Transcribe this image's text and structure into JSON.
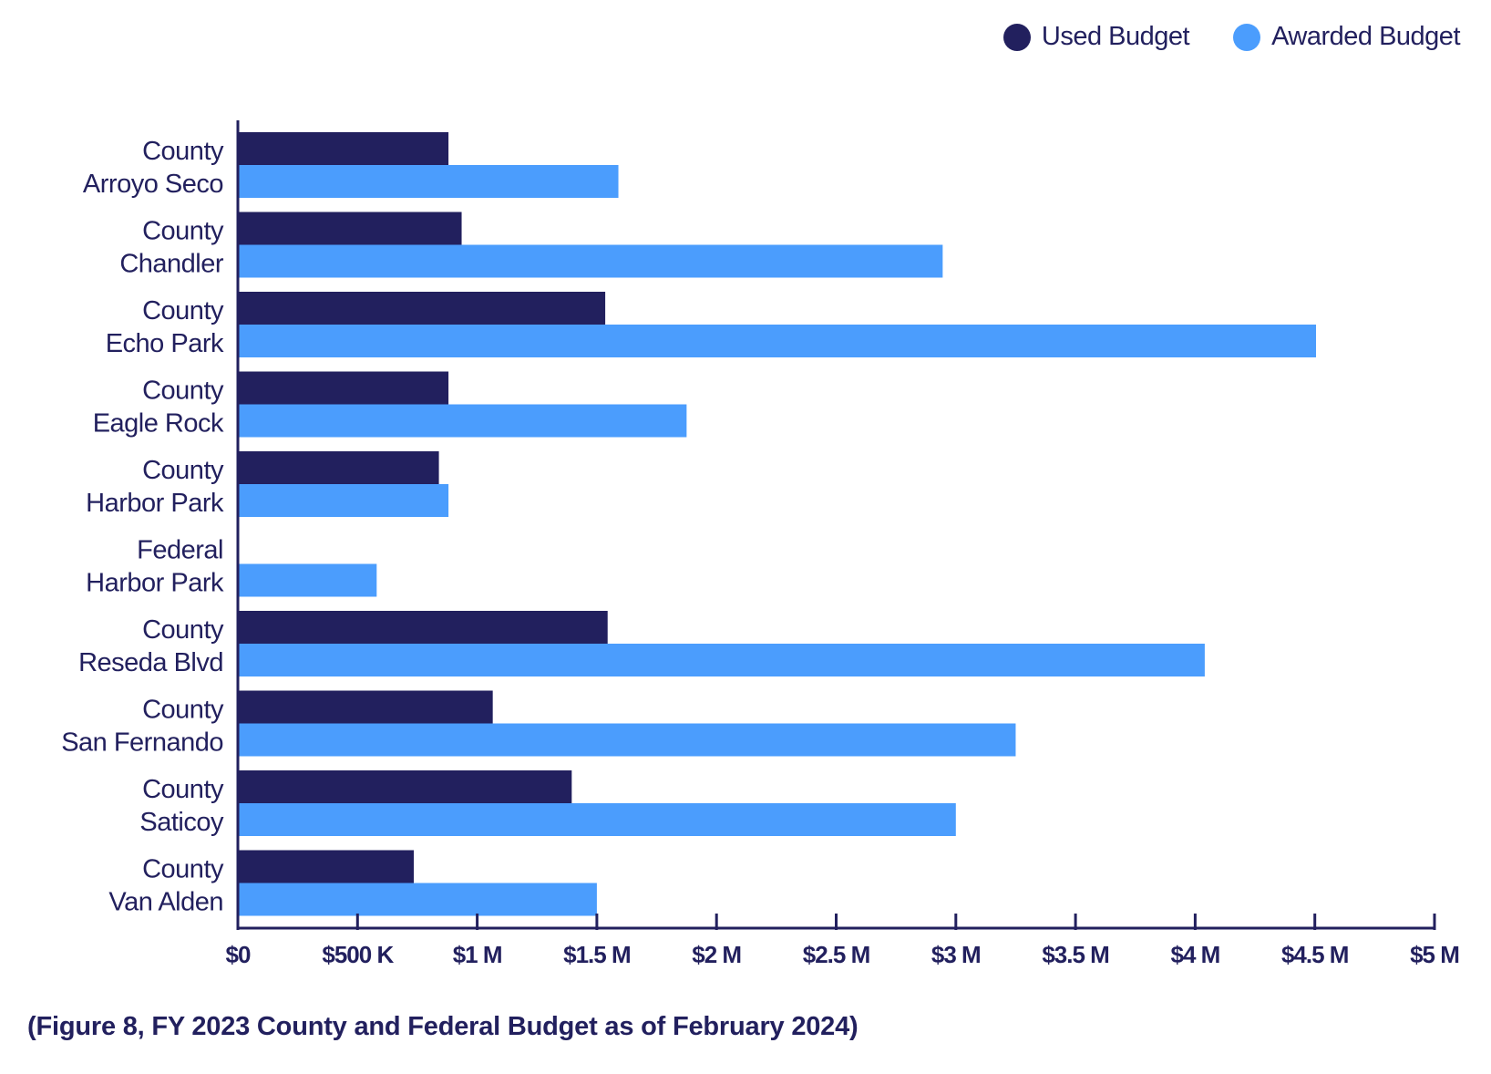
{
  "caption": "(Figure 8, FY 2023 County and Federal Budget as of February 2024)",
  "colors": {
    "used": "#22205e",
    "awarded": "#4b9dfd",
    "axis": "#22205e",
    "text": "#22205e"
  },
  "chart_data": {
    "type": "bar",
    "orientation": "horizontal",
    "legend_position": "top-right",
    "grid": false,
    "xlim": [
      0,
      5000000
    ],
    "xticks": [
      "$0",
      "$500 K",
      "$1 M",
      "$1.5 M",
      "$2 M",
      "$2.5 M",
      "$3 M",
      "$3.5 M",
      "$4 M",
      "$4.5 M",
      "$5 M"
    ],
    "categories": [
      [
        "County",
        "Arroyo Seco"
      ],
      [
        "County",
        "Chandler"
      ],
      [
        "County",
        "Echo Park"
      ],
      [
        "County",
        "Eagle Rock"
      ],
      [
        "County",
        "Harbor Park"
      ],
      [
        "Federal",
        "Harbor Park"
      ],
      [
        "County",
        "Reseda Blvd"
      ],
      [
        "County",
        "San Fernando"
      ],
      [
        "County",
        "Saticoy"
      ],
      [
        "County",
        "Van Alden"
      ]
    ],
    "series": [
      {
        "name": "Used Budget",
        "values": [
          880000,
          935000,
          1535000,
          880000,
          840000,
          0,
          1545000,
          1065000,
          1395000,
          735000
        ]
      },
      {
        "name": "Awarded Budget",
        "values": [
          1590000,
          2945000,
          4505000,
          1875000,
          880000,
          580000,
          4040000,
          3250000,
          3000000,
          1500000
        ]
      }
    ]
  }
}
